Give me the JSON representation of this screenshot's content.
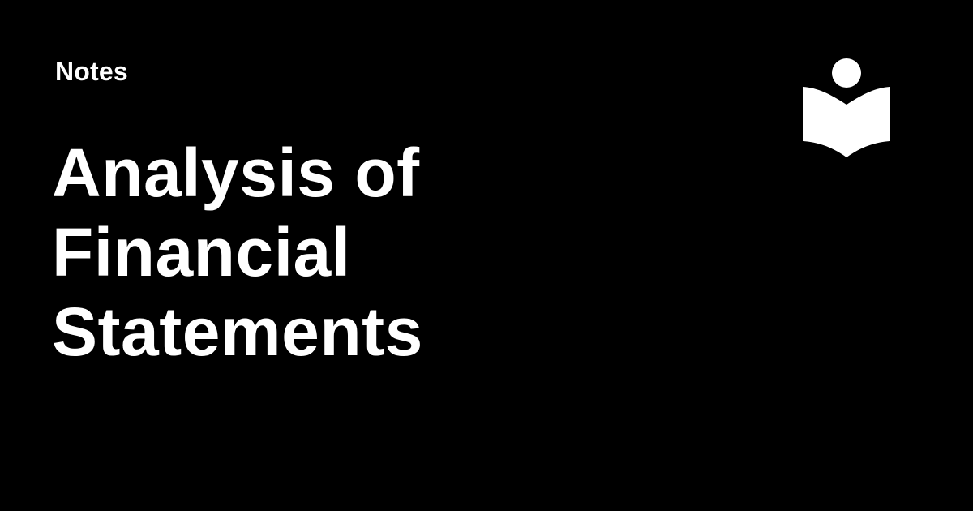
{
  "card": {
    "category": "Notes",
    "title_lines": [
      "Analysis of",
      "Financial",
      "Statements"
    ],
    "background_color": "#000000",
    "text_color": "#ffffff",
    "logo_icon": "reading-person-book-icon"
  }
}
